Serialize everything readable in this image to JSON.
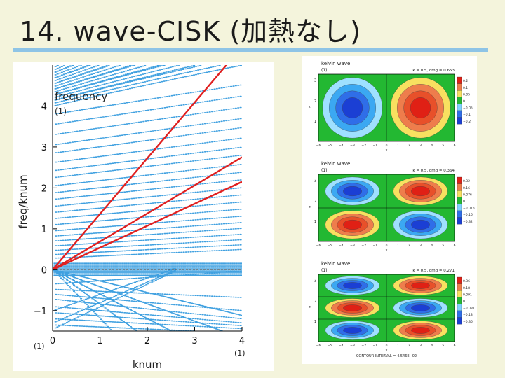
{
  "slide": {
    "title": "14. wave-CISK (加熱なし)"
  },
  "chart_data": [
    {
      "type": "scatter",
      "title": "",
      "xlabel": "knum",
      "ylabel": "freq/knum",
      "annotation": "frequency",
      "annotation_unit": "(1)",
      "xunit": "(1)",
      "yunit": "(1)",
      "xlim": [
        0,
        4
      ],
      "ylim": [
        -1.5,
        5.0
      ],
      "xticks": [
        "0",
        "1",
        "2",
        "3",
        "4"
      ],
      "yticks": [
        "−1",
        "0",
        "1",
        "2",
        "3",
        "4"
      ],
      "grid": false,
      "point_color": "#3fa0e0",
      "line_color": "#e02020",
      "red_lines": [
        {
          "x": [
            0,
            4
          ],
          "y": [
            0,
            5.45
          ]
        },
        {
          "x": [
            0,
            4
          ],
          "y": [
            0,
            2.75
          ]
        },
        {
          "x": [
            0,
            4
          ],
          "y": [
            0,
            2.15
          ]
        }
      ],
      "dashed_reference_y": 4
    },
    {
      "type": "heatmap",
      "title": "kelvin wave",
      "unit_label": "(1)",
      "info": "k = 0.5, omg = 0.653",
      "xlabel": "x",
      "ylabel": "z",
      "xticks": [
        "−6",
        "−5",
        "−4",
        "−3",
        "−2",
        "−1",
        "0",
        "1",
        "2",
        "3",
        "4",
        "5",
        "6"
      ],
      "yticks": [
        "1",
        "2",
        "3"
      ],
      "colorbar": [
        "0.2",
        "0.1",
        "0.05",
        "0",
        "−0.05",
        "−0.1",
        "−0.2"
      ]
    },
    {
      "type": "heatmap",
      "title": "kelvin wave",
      "unit_label": "(1)",
      "info": "k = 0.5, omg = 0.364",
      "xlabel": "x",
      "ylabel": "z",
      "xticks": [
        "−6",
        "−5",
        "−4",
        "−3",
        "−2",
        "−1",
        "0",
        "1",
        "2",
        "3",
        "4",
        "5",
        "6"
      ],
      "yticks": [
        "1",
        "2",
        "3"
      ],
      "colorbar": [
        "0.32",
        "0.16",
        "0.076",
        "0",
        "−0.076",
        "−0.16",
        "−0.32"
      ]
    },
    {
      "type": "heatmap",
      "title": "kelvin wave",
      "unit_label": "(1)",
      "info": "k = 0.5, omg = 0.271",
      "xlabel": "x",
      "ylabel": "z",
      "xticks": [
        "−6",
        "−5",
        "−4",
        "−3",
        "−2",
        "−1",
        "0",
        "1",
        "2",
        "3",
        "4",
        "5",
        "6"
      ],
      "yticks": [
        "1",
        "2",
        "3"
      ],
      "colorbar": [
        "0.36",
        "0.18",
        "0.091",
        "0",
        "−0.091",
        "−0.18",
        "−0.36"
      ],
      "footer": "CONTOUR INTERVAL = 4.546E−02"
    }
  ]
}
